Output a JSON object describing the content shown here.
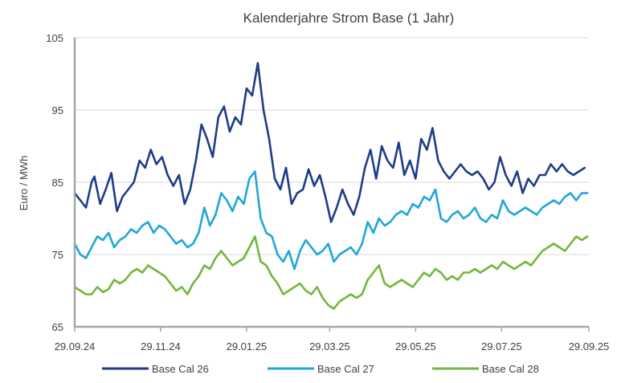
{
  "chart_data": {
    "type": "line",
    "title": "Kalenderjahre Strom Base (1 Jahr)",
    "xlabel": "",
    "ylabel": "Euro / MWh",
    "ylim": [
      65,
      105
    ],
    "yticks": [
      65,
      75,
      85,
      95,
      105
    ],
    "xlim": [
      0,
      365
    ],
    "xticks": [
      {
        "label": "29.09.24",
        "day": 0
      },
      {
        "label": "29.11.24",
        "day": 61
      },
      {
        "label": "29.01.25",
        "day": 122
      },
      {
        "label": "29.03.25",
        "day": 181
      },
      {
        "label": "29.05.25",
        "day": 242
      },
      {
        "label": "29.07.25",
        "day": 303
      },
      {
        "label": "29.09.25",
        "day": 365
      }
    ],
    "grid": true,
    "legend_position": "bottom",
    "series": [
      {
        "name": "Base Cal 26",
        "color": "#1f3c88",
        "x": [
          0,
          4,
          8,
          12,
          14,
          18,
          22,
          26,
          30,
          34,
          38,
          42,
          46,
          50,
          54,
          58,
          62,
          66,
          70,
          74,
          78,
          82,
          86,
          90,
          94,
          98,
          102,
          106,
          110,
          114,
          118,
          122,
          126,
          130,
          134,
          138,
          142,
          146,
          150,
          154,
          158,
          162,
          166,
          170,
          174,
          178,
          182,
          186,
          190,
          194,
          198,
          202,
          206,
          210,
          214,
          218,
          222,
          226,
          230,
          234,
          238,
          242,
          246,
          250,
          254,
          258,
          262,
          266,
          270,
          274,
          278,
          282,
          286,
          290,
          294,
          298,
          302,
          306,
          310,
          314,
          318,
          322,
          326,
          330,
          334,
          338,
          342,
          346,
          350,
          354,
          358,
          362
        ],
        "values": [
          83.5,
          82.5,
          81.5,
          85.0,
          85.8,
          82.0,
          84.0,
          86.3,
          81.0,
          83.0,
          84.0,
          85.0,
          88.0,
          87.0,
          89.5,
          87.5,
          88.5,
          86.0,
          84.5,
          86.0,
          82.0,
          84.0,
          88.0,
          93.0,
          91.0,
          88.5,
          94.0,
          95.5,
          92.0,
          94.0,
          93.0,
          98.0,
          97.0,
          101.5,
          95.0,
          91.0,
          85.5,
          84.0,
          87.0,
          82.0,
          83.5,
          84.0,
          86.8,
          84.5,
          86.0,
          83.0,
          79.5,
          81.5,
          84.0,
          82.0,
          80.5,
          83.0,
          87.0,
          89.5,
          85.5,
          90.0,
          88.0,
          87.0,
          90.5,
          86.0,
          88.0,
          85.5,
          91.0,
          89.5,
          92.5,
          88.0,
          86.5,
          85.5,
          86.5,
          87.5,
          86.5,
          86.0,
          86.5,
          85.5,
          84.0,
          85.0,
          88.5,
          86.0,
          84.5,
          86.5,
          83.5,
          85.5,
          84.5,
          86.0,
          86.0,
          87.5,
          86.5,
          87.5,
          86.5,
          86.0,
          86.5,
          87.0
        ]
      },
      {
        "name": "Base Cal 27",
        "color": "#1ea7d8",
        "x": [
          0,
          4,
          8,
          12,
          16,
          20,
          24,
          28,
          32,
          36,
          40,
          44,
          48,
          52,
          56,
          60,
          64,
          68,
          72,
          76,
          80,
          84,
          88,
          92,
          96,
          100,
          104,
          108,
          112,
          116,
          120,
          124,
          128,
          132,
          136,
          140,
          144,
          148,
          152,
          156,
          160,
          164,
          168,
          172,
          176,
          180,
          184,
          188,
          192,
          196,
          200,
          204,
          208,
          212,
          216,
          220,
          224,
          228,
          232,
          236,
          240,
          244,
          248,
          252,
          256,
          260,
          264,
          268,
          272,
          276,
          280,
          284,
          288,
          292,
          296,
          300,
          304,
          308,
          312,
          316,
          320,
          324,
          328,
          332,
          336,
          340,
          344,
          348,
          352,
          356,
          360,
          364
        ],
        "values": [
          76.5,
          75.0,
          74.5,
          76.0,
          77.5,
          77.0,
          78.0,
          76.0,
          77.0,
          77.5,
          78.5,
          78.0,
          79.0,
          79.5,
          78.0,
          79.0,
          78.5,
          77.5,
          76.5,
          77.0,
          76.0,
          76.5,
          78.0,
          81.5,
          79.0,
          80.5,
          83.5,
          82.5,
          81.0,
          83.0,
          82.0,
          85.5,
          86.5,
          80.0,
          78.0,
          77.5,
          75.0,
          74.0,
          75.5,
          73.0,
          75.5,
          77.0,
          76.0,
          75.0,
          75.5,
          76.5,
          74.0,
          75.0,
          75.5,
          76.0,
          75.0,
          76.5,
          79.5,
          78.0,
          80.0,
          79.0,
          79.5,
          80.5,
          81.0,
          80.5,
          82.0,
          81.5,
          83.0,
          82.5,
          84.0,
          80.0,
          79.5,
          80.5,
          81.0,
          80.0,
          80.5,
          81.5,
          80.0,
          79.5,
          80.5,
          80.0,
          82.5,
          81.0,
          80.5,
          81.0,
          81.5,
          81.0,
          80.5,
          81.5,
          82.0,
          82.5,
          82.0,
          83.0,
          83.5,
          82.5,
          83.5,
          83.5
        ]
      },
      {
        "name": "Base Cal 28",
        "color": "#72b73a",
        "x": [
          0,
          4,
          8,
          12,
          16,
          20,
          24,
          28,
          32,
          36,
          40,
          44,
          48,
          52,
          56,
          60,
          64,
          68,
          72,
          76,
          80,
          84,
          88,
          92,
          96,
          100,
          104,
          108,
          112,
          116,
          120,
          124,
          128,
          132,
          136,
          140,
          144,
          148,
          152,
          156,
          160,
          164,
          168,
          172,
          176,
          180,
          184,
          188,
          192,
          196,
          200,
          204,
          208,
          212,
          216,
          220,
          224,
          228,
          232,
          236,
          240,
          244,
          248,
          252,
          256,
          260,
          264,
          268,
          272,
          276,
          280,
          284,
          288,
          292,
          296,
          300,
          304,
          308,
          312,
          316,
          320,
          324,
          328,
          332,
          336,
          340,
          344,
          348,
          352,
          356,
          360,
          364
        ],
        "values": [
          70.5,
          70.0,
          69.5,
          69.5,
          70.5,
          69.8,
          70.2,
          71.5,
          71.0,
          71.5,
          72.5,
          73.0,
          72.5,
          73.5,
          73.0,
          72.5,
          72.0,
          71.0,
          70.0,
          70.5,
          69.5,
          71.0,
          72.0,
          73.5,
          73.0,
          74.5,
          75.5,
          74.5,
          73.5,
          74.0,
          74.5,
          76.0,
          77.5,
          74.0,
          73.5,
          72.0,
          71.0,
          69.5,
          70.0,
          70.5,
          71.0,
          70.0,
          69.5,
          70.5,
          69.0,
          68.0,
          67.5,
          68.5,
          69.0,
          69.5,
          69.0,
          69.5,
          71.5,
          72.5,
          73.5,
          71.0,
          70.5,
          71.0,
          71.5,
          71.0,
          70.5,
          71.5,
          72.5,
          72.0,
          73.0,
          72.5,
          71.5,
          72.0,
          71.5,
          72.5,
          72.5,
          73.0,
          72.5,
          73.0,
          73.5,
          73.0,
          74.0,
          73.5,
          73.0,
          73.5,
          74.0,
          73.5,
          74.5,
          75.5,
          76.0,
          76.5,
          76.0,
          75.5,
          76.5,
          77.5,
          77.0,
          77.5
        ]
      }
    ]
  }
}
